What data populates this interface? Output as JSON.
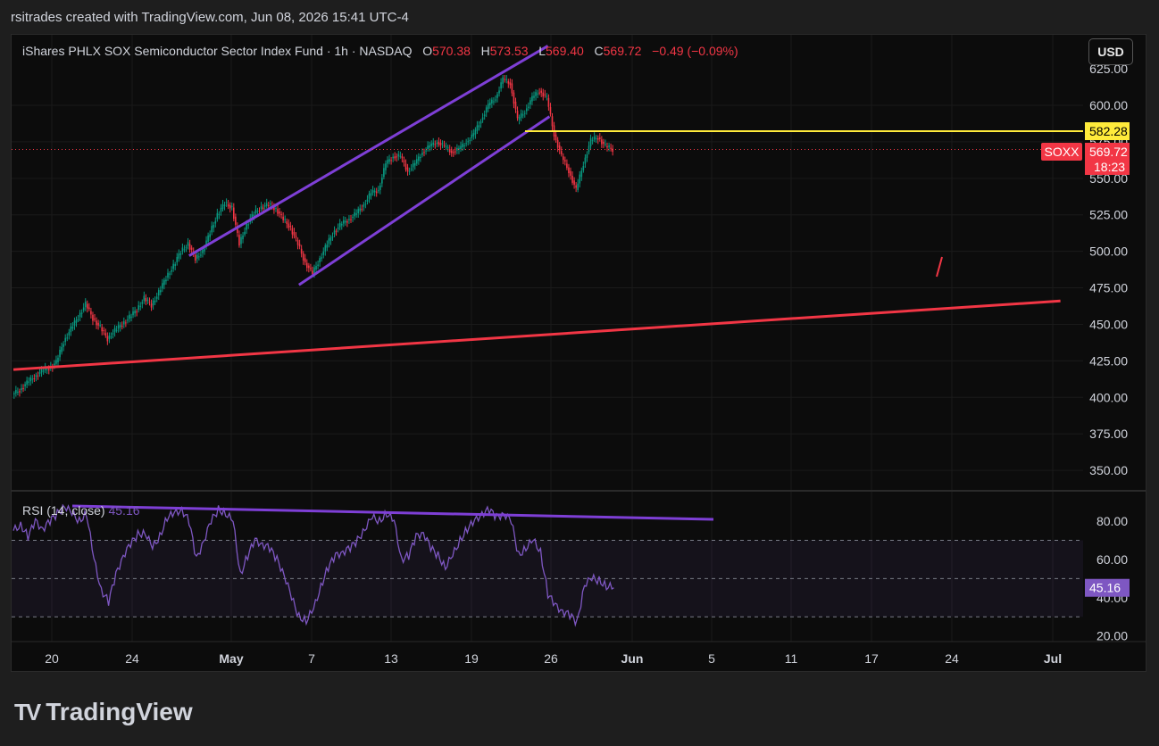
{
  "header": {
    "credit": "rsitrades created with TradingView.com, Jun 08, 2026 15:41 UTC-4"
  },
  "legend": {
    "symbol_desc": "iShares PHLX SOX Semiconductor Sector Index Fund · 1h · NASDAQ",
    "o_label": "O",
    "o_value": "570.38",
    "h_label": "H",
    "h_value": "573.53",
    "l_label": "L",
    "l_value": "569.40",
    "c_label": "C",
    "c_value": "569.72",
    "change": "−0.49 (−0.09%)"
  },
  "rsi_legend": {
    "label": "RSI (14, close)",
    "value": "45.16"
  },
  "currency_button": "USD",
  "branding": "TradingView",
  "colors": {
    "up": "#089981",
    "down": "#f23645",
    "rsi": "#7e57c2",
    "channel": "#7e3fd6",
    "resistance": "#ffeb3b",
    "support": "#f23645"
  },
  "chart_data": [
    {
      "type": "candlestick",
      "price_axis_ticks": [
        "600.00",
        "575.00",
        "550.00",
        "525.00",
        "500.00",
        "475.00",
        "450.00",
        "425.00",
        "400.00",
        "375.00",
        "350.00"
      ],
      "price_axis_partial_top": "625.00",
      "time_axis_ticks": [
        "20",
        "24",
        "May",
        "7",
        "13",
        "19",
        "26",
        "Jun",
        "5",
        "11",
        "17",
        "24",
        "Jul"
      ],
      "ylim": [
        337,
        630
      ],
      "resistance_level": "582.28",
      "last_price_badge": {
        "symbol": "SOXX",
        "price": "569.72",
        "countdown": "18:23"
      },
      "price_path": [
        [
          0,
          402
        ],
        [
          1,
          405
        ],
        [
          2,
          410
        ],
        [
          3,
          414
        ],
        [
          4,
          418
        ],
        [
          5,
          420
        ],
        [
          6,
          424
        ],
        [
          7,
          438
        ],
        [
          8,
          447
        ],
        [
          9,
          455
        ],
        [
          10,
          464
        ],
        [
          11,
          454
        ],
        [
          12,
          448
        ],
        [
          13,
          440
        ],
        [
          14,
          446
        ],
        [
          15,
          450
        ],
        [
          16,
          455
        ],
        [
          17,
          460
        ],
        [
          18,
          468
        ],
        [
          19,
          463
        ],
        [
          20,
          472
        ],
        [
          21,
          482
        ],
        [
          22,
          490
        ],
        [
          23,
          500
        ],
        [
          24,
          505
        ],
        [
          25,
          495
        ],
        [
          26,
          500
        ],
        [
          27,
          513
        ],
        [
          28,
          525
        ],
        [
          29,
          533
        ],
        [
          30,
          530
        ],
        [
          31,
          505
        ],
        [
          32,
          518
        ],
        [
          33,
          526
        ],
        [
          34,
          530
        ],
        [
          35,
          532
        ],
        [
          36,
          529
        ],
        [
          37,
          522
        ],
        [
          38,
          516
        ],
        [
          39,
          505
        ],
        [
          40,
          492
        ],
        [
          41,
          485
        ],
        [
          42,
          495
        ],
        [
          43,
          505
        ],
        [
          44,
          514
        ],
        [
          45,
          519
        ],
        [
          46,
          522
        ],
        [
          47,
          526
        ],
        [
          48,
          532
        ],
        [
          49,
          540
        ],
        [
          50,
          542
        ],
        [
          51,
          560
        ],
        [
          52,
          565
        ],
        [
          53,
          565
        ],
        [
          54,
          555
        ],
        [
          55,
          560
        ],
        [
          56,
          568
        ],
        [
          57,
          572
        ],
        [
          58,
          575
        ],
        [
          59,
          572
        ],
        [
          60,
          568
        ],
        [
          61,
          570
        ],
        [
          62,
          575
        ],
        [
          63,
          580
        ],
        [
          64,
          590
        ],
        [
          65,
          600
        ],
        [
          66,
          605
        ],
        [
          67,
          618
        ],
        [
          68,
          615
        ],
        [
          69,
          590
        ],
        [
          70,
          596
        ],
        [
          71,
          605
        ],
        [
          72,
          610
        ],
        [
          73,
          605
        ],
        [
          74,
          580
        ],
        [
          75,
          565
        ],
        [
          76,
          555
        ],
        [
          77,
          542
        ],
        [
          78,
          560
        ],
        [
          79,
          576
        ],
        [
          80,
          578
        ],
        [
          81,
          572
        ],
        [
          82,
          569.72
        ]
      ],
      "channel_lower": {
        "from": [
          24,
          497
        ],
        "to": [
          73,
          604
        ]
      },
      "channel_lower_parallel": {
        "from": [
          39,
          477
        ],
        "to": [
          72,
          577
        ]
      },
      "support_line": {
        "from": [
          0,
          419
        ],
        "to": [
          143,
          466
        ]
      },
      "markers": [
        {
          "from": [
            83,
            484
          ],
          "to": [
            84,
            497
          ]
        }
      ]
    },
    {
      "type": "line",
      "name": "RSI (14, close)",
      "ylim": [
        17,
        90
      ],
      "axis_ticks": [
        "80.00",
        "60.00",
        "40.00",
        "20.00"
      ],
      "bands": [
        70,
        50,
        30
      ],
      "last_value": "45.16",
      "values": [
        [
          0,
          75
        ],
        [
          1,
          78
        ],
        [
          2,
          72
        ],
        [
          3,
          80
        ],
        [
          4,
          76
        ],
        [
          5,
          80
        ],
        [
          6,
          84
        ],
        [
          7,
          88
        ],
        [
          8,
          84
        ],
        [
          9,
          80
        ],
        [
          10,
          84
        ],
        [
          11,
          60
        ],
        [
          12,
          44
        ],
        [
          13,
          38
        ],
        [
          14,
          52
        ],
        [
          15,
          62
        ],
        [
          16,
          68
        ],
        [
          17,
          73
        ],
        [
          18,
          74
        ],
        [
          19,
          66
        ],
        [
          20,
          72
        ],
        [
          21,
          82
        ],
        [
          22,
          84
        ],
        [
          23,
          86
        ],
        [
          24,
          80
        ],
        [
          25,
          60
        ],
        [
          26,
          70
        ],
        [
          27,
          80
        ],
        [
          28,
          86
        ],
        [
          29,
          84
        ],
        [
          30,
          80
        ],
        [
          31,
          52
        ],
        [
          32,
          62
        ],
        [
          33,
          70
        ],
        [
          34,
          68
        ],
        [
          35,
          66
        ],
        [
          36,
          60
        ],
        [
          37,
          52
        ],
        [
          38,
          40
        ],
        [
          39,
          30
        ],
        [
          40,
          28
        ],
        [
          41,
          34
        ],
        [
          42,
          46
        ],
        [
          43,
          56
        ],
        [
          44,
          62
        ],
        [
          45,
          64
        ],
        [
          46,
          66
        ],
        [
          47,
          70
        ],
        [
          48,
          76
        ],
        [
          49,
          82
        ],
        [
          50,
          80
        ],
        [
          51,
          84
        ],
        [
          52,
          80
        ],
        [
          53,
          60
        ],
        [
          54,
          62
        ],
        [
          55,
          72
        ],
        [
          56,
          74
        ],
        [
          57,
          66
        ],
        [
          58,
          62
        ],
        [
          59,
          56
        ],
        [
          60,
          62
        ],
        [
          61,
          70
        ],
        [
          62,
          76
        ],
        [
          63,
          80
        ],
        [
          64,
          84
        ],
        [
          65,
          86
        ],
        [
          66,
          82
        ],
        [
          67,
          84
        ],
        [
          68,
          80
        ],
        [
          69,
          62
        ],
        [
          70,
          66
        ],
        [
          71,
          70
        ],
        [
          72,
          64
        ],
        [
          73,
          42
        ],
        [
          74,
          36
        ],
        [
          75,
          33
        ],
        [
          76,
          31
        ],
        [
          77,
          27
        ],
        [
          78,
          47
        ],
        [
          79,
          50
        ],
        [
          80,
          49
        ],
        [
          81,
          46
        ],
        [
          82,
          45.16
        ]
      ],
      "divergence_line": {
        "from": [
          3,
          89
        ],
        "to": [
          73,
          81
        ]
      }
    }
  ]
}
